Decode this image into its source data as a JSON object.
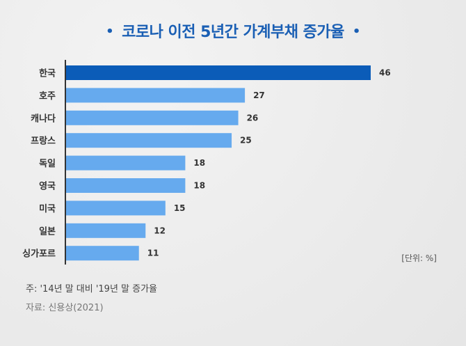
{
  "title": "코로나 이전 5년간 가계부채 증가율",
  "title_bullet": "•",
  "unit": "[단위: %]",
  "note": "주: '14년 말 대비 '19년 말 증가율",
  "source": "자료: 신용상(2021)",
  "colors": {
    "title": "#1a5fb4",
    "highlight_bar": "#0b5cb8",
    "bar": "#66aaee",
    "axis": "#333333"
  },
  "chart_data": {
    "type": "bar",
    "orientation": "horizontal",
    "title": "코로나 이전 5년간 가계부채 증가율",
    "categories": [
      "한국",
      "호주",
      "캐나다",
      "프랑스",
      "독일",
      "영국",
      "미국",
      "일본",
      "싱가포르"
    ],
    "values": [
      46,
      27,
      26,
      25,
      18,
      18,
      15,
      12,
      11
    ],
    "highlight_index": 0,
    "unit": "%",
    "xlim": [
      0,
      50
    ],
    "grid": false,
    "data_labels": true
  }
}
